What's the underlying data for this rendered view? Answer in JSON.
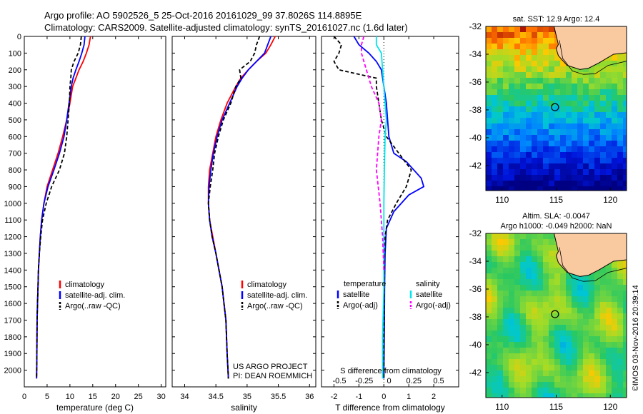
{
  "header": {
    "line1": "Argo profile: AO 5902526_5 25-Oct-2016 20161029_99 37.8026S 114.8895E",
    "line2": "Climatology: CARS2009. Satellite-adjusted climatology: synTS_20161027.nc (1.6d later)"
  },
  "credit": "©IMOS 03-Nov-2016 20:39:14",
  "project": {
    "line1": "US ARGO PROJECT",
    "line2": "PI: DEAN ROEMMICH"
  },
  "colors": {
    "climatology": "#ff0000",
    "satellite": "#0000ff",
    "argo": "#000000",
    "sal_satellite": "#00e5ee",
    "sal_argo": "#ff00ff",
    "land": "#f9c9a0"
  },
  "chart_data": [
    {
      "id": "temperature",
      "type": "line",
      "xlabel": "temperature (deg C)",
      "ylabel": "",
      "xlim": [
        0,
        31
      ],
      "ylim": [
        2100,
        0
      ],
      "xticks": [
        0,
        5,
        10,
        15,
        20,
        25,
        30
      ],
      "yticks": [
        0,
        100,
        200,
        300,
        400,
        500,
        600,
        700,
        800,
        900,
        1000,
        1100,
        1200,
        1300,
        1400,
        1500,
        1600,
        1700,
        1800,
        1900,
        2000
      ],
      "legend": [
        "climatology",
        "satellite-adj. clim.",
        "Argo(..raw -QC)"
      ],
      "series": [
        {
          "name": "climatology",
          "color": "#ff0000",
          "dash": "",
          "x": [
            14.5,
            14.2,
            13.6,
            12.9,
            12.0,
            11.3,
            10.6,
            10.0,
            9.3,
            8.4,
            7.4,
            6.2,
            5.0,
            4.3,
            3.8,
            3.5,
            3.3,
            3.1,
            3.0,
            2.9,
            2.8,
            2.75,
            2.7
          ],
          "y": [
            0,
            50,
            100,
            150,
            200,
            250,
            300,
            400,
            500,
            600,
            700,
            800,
            900,
            1000,
            1100,
            1200,
            1300,
            1400,
            1500,
            1600,
            1700,
            1900,
            2050
          ]
        },
        {
          "name": "satellite-adj. clim.",
          "color": "#0000ff",
          "dash": "",
          "x": [
            13.3,
            13.1,
            12.6,
            12.0,
            11.3,
            10.7,
            10.3,
            9.8,
            9.3,
            8.7,
            7.7,
            6.5,
            5.2,
            4.3,
            3.8,
            3.5,
            3.3,
            3.1,
            3.0,
            2.9,
            2.8,
            2.75,
            2.7
          ],
          "y": [
            0,
            50,
            100,
            150,
            200,
            250,
            300,
            400,
            500,
            600,
            700,
            800,
            900,
            1000,
            1100,
            1200,
            1300,
            1400,
            1500,
            1600,
            1700,
            1900,
            2050
          ]
        },
        {
          "name": "Argo(..raw -QC)",
          "color": "#000000",
          "dash": "5,3",
          "x": [
            12.5,
            12.3,
            11.8,
            10.9,
            10.3,
            10.2,
            10.0,
            9.9,
            9.6,
            9.3,
            8.8,
            7.7,
            6.0,
            4.8,
            4.0,
            3.6,
            3.3,
            3.1,
            3.0,
            2.9,
            2.8,
            2.75,
            2.7
          ],
          "y": [
            0,
            50,
            100,
            150,
            200,
            250,
            300,
            400,
            500,
            600,
            700,
            800,
            900,
            1000,
            1100,
            1200,
            1300,
            1400,
            1500,
            1600,
            1700,
            1900,
            2050
          ]
        }
      ]
    },
    {
      "id": "salinity",
      "type": "line",
      "xlabel": "salinity",
      "ylabel": "",
      "xlim": [
        33.8,
        36.1
      ],
      "ylim": [
        2100,
        0
      ],
      "xticks": [
        34,
        34.5,
        35,
        35.5,
        36
      ],
      "legend": [
        "climatology",
        "satellite-adj. clim.",
        "Argo(..raw -QC)"
      ],
      "series": [
        {
          "name": "climatology",
          "color": "#ff0000",
          "dash": "",
          "x": [
            35.45,
            35.38,
            35.3,
            35.15,
            35.02,
            34.9,
            34.82,
            34.68,
            34.58,
            34.5,
            34.45,
            34.4,
            34.38,
            34.38,
            34.4,
            34.45,
            34.5,
            34.55,
            34.6,
            34.63,
            34.66,
            34.68,
            34.7
          ],
          "y": [
            0,
            50,
            100,
            150,
            200,
            250,
            300,
            400,
            500,
            600,
            700,
            800,
            900,
            1000,
            1100,
            1200,
            1300,
            1400,
            1500,
            1600,
            1700,
            1900,
            2050
          ]
        },
        {
          "name": "satellite-adj. clim.",
          "color": "#0000ff",
          "dash": "",
          "x": [
            35.38,
            35.33,
            35.28,
            35.15,
            35.02,
            34.92,
            34.84,
            34.72,
            34.6,
            34.52,
            34.46,
            34.42,
            34.39,
            34.38,
            34.4,
            34.44,
            34.5,
            34.55,
            34.6,
            34.63,
            34.66,
            34.68,
            34.7
          ],
          "y": [
            0,
            50,
            100,
            150,
            200,
            250,
            300,
            400,
            500,
            600,
            700,
            800,
            900,
            1000,
            1100,
            1200,
            1300,
            1400,
            1500,
            1600,
            1700,
            1900,
            2050
          ]
        },
        {
          "name": "Argo(..raw -QC)",
          "color": "#000000",
          "dash": "5,3",
          "x": [
            35.2,
            35.15,
            35.12,
            35.05,
            34.88,
            34.9,
            34.82,
            34.74,
            34.62,
            34.54,
            34.48,
            34.45,
            34.41,
            34.38,
            34.4,
            34.44,
            34.5,
            34.55,
            34.6,
            34.63,
            34.66,
            34.68,
            34.7
          ],
          "y": [
            0,
            50,
            100,
            150,
            200,
            250,
            300,
            400,
            500,
            600,
            700,
            800,
            900,
            1000,
            1100,
            1200,
            1300,
            1400,
            1500,
            1600,
            1700,
            1900,
            2050
          ]
        }
      ]
    },
    {
      "id": "difference",
      "type": "line",
      "xlabel": "T difference from climatology",
      "xlabel_top": "S difference from climatology",
      "xlim": [
        -2.5,
        3.0
      ],
      "ylim": [
        2100,
        0
      ],
      "xticks": [
        -2,
        -1,
        0,
        1,
        2
      ],
      "xticks_top": [
        "-0.5",
        "-0.25",
        "0",
        "0.25",
        "0.5"
      ],
      "legend_titles": [
        "temperature",
        "salinity"
      ],
      "legend_left": [
        "satellite",
        "Argo(-adj)"
      ],
      "legend_right": [
        "satellite",
        "Argo(-adj)"
      ],
      "series": [
        {
          "name": "temperature satellite",
          "color": "#0000ff",
          "dash": "",
          "x": [
            -1.2,
            -1.0,
            -0.6,
            -0.3,
            -0.1,
            0.0,
            0.1,
            0.15,
            0.2,
            0.4,
            0.9,
            1.5,
            1.6,
            1.0,
            0.4,
            0.1,
            0.05,
            0.03,
            0.02,
            0.01,
            0.0,
            0.0
          ],
          "y": [
            0,
            50,
            100,
            150,
            200,
            300,
            400,
            500,
            600,
            700,
            750,
            850,
            900,
            950,
            1050,
            1150,
            1300,
            1500,
            1700,
            1900,
            2000,
            2050
          ]
        },
        {
          "name": "temperature Argo(-adj)",
          "color": "#000000",
          "dash": "5,3",
          "x": [
            -2.0,
            -1.7,
            -1.8,
            -2.0,
            -1.8,
            -0.3,
            -0.3,
            -0.2,
            -0.1,
            0.1,
            0.6,
            1.1,
            0.9,
            0.5,
            0.15,
            0.05,
            0.03,
            0.02,
            0.01,
            0.0,
            0.0
          ],
          "y": [
            0,
            50,
            100,
            150,
            200,
            250,
            300,
            400,
            500,
            600,
            700,
            800,
            900,
            1000,
            1100,
            1200,
            1300,
            1500,
            1700,
            1900,
            2050
          ]
        },
        {
          "name": "salinity satellite",
          "color": "#00e5ee",
          "dash": "",
          "x": [
            -0.3,
            -0.3,
            -0.1,
            -0.05,
            0.0,
            0.05,
            0.1,
            0.05,
            0.02,
            0.0,
            0.0,
            0.0,
            -0.05,
            -0.05
          ],
          "y": [
            0,
            50,
            100,
            200,
            300,
            400,
            500,
            600,
            800,
            1000,
            1200,
            1500,
            1800,
            2050
          ]
        },
        {
          "name": "salinity Argo(-adj)",
          "color": "#ff00ff",
          "dash": "5,3",
          "x": [
            -0.8,
            -0.9,
            -0.9,
            -0.7,
            -0.5,
            -0.2,
            -0.1,
            -0.2,
            -0.3,
            -0.15,
            -0.05,
            0.0
          ],
          "y": [
            0,
            50,
            100,
            200,
            300,
            400,
            500,
            600,
            800,
            1000,
            1200,
            1400
          ]
        }
      ]
    },
    {
      "id": "sst_map",
      "type": "heatmap",
      "title": "sat. SST: 12.9 Argo: 12.4",
      "xlim": [
        108.5,
        121.5
      ],
      "ylim": [
        -43.8,
        -32
      ],
      "xticks": [
        110,
        115,
        120
      ],
      "yticks": [
        -32,
        -34,
        -36,
        -38,
        -40,
        -42
      ],
      "marker": {
        "lon": 114.8895,
        "lat": -37.8026
      }
    },
    {
      "id": "sla_map",
      "type": "heatmap",
      "title_line1": "Altim. SLA: -0.0047",
      "title_line2": "Argo h1000: -0.049 h2000: NaN",
      "xlim": [
        108.5,
        121.5
      ],
      "ylim": [
        -43.8,
        -32
      ],
      "xticks": [
        110,
        115,
        120
      ],
      "yticks": [
        -32,
        -34,
        -36,
        -38,
        -40,
        -42
      ],
      "marker": {
        "lon": 114.8895,
        "lat": -37.8026
      }
    }
  ]
}
